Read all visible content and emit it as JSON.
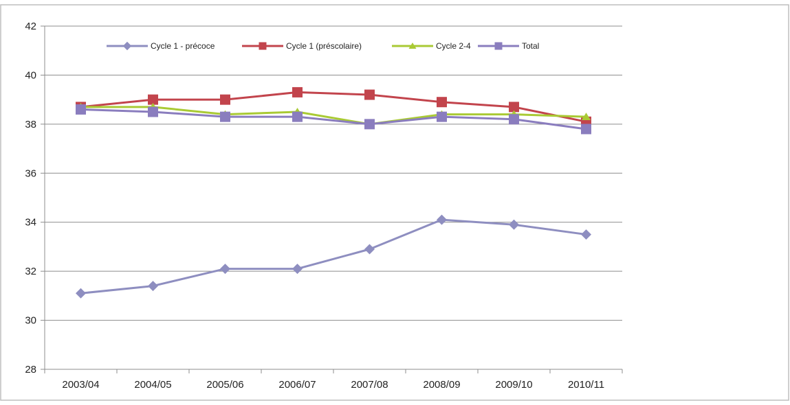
{
  "chart_data": {
    "type": "line",
    "title": "",
    "xlabel": "",
    "ylabel": "",
    "categories": [
      "2003/04",
      "2004/05",
      "2005/06",
      "2006/07",
      "2007/08",
      "2008/09",
      "2009/10",
      "2010/11"
    ],
    "ylim": [
      28,
      42
    ],
    "yticks": [
      28,
      30,
      32,
      34,
      36,
      38,
      40,
      42
    ],
    "grid": "horizontal",
    "legend_position": "top",
    "series": [
      {
        "name": "Cycle 1 - précoce",
        "color": "#8E8EC0",
        "marker": "diamond",
        "values": [
          31.1,
          31.4,
          32.1,
          32.1,
          32.9,
          34.1,
          33.9,
          33.5
        ]
      },
      {
        "name": "Cycle 1 (préscolaire)",
        "color": "#C2444C",
        "marker": "square",
        "values": [
          38.7,
          39.0,
          39.0,
          39.3,
          39.2,
          38.9,
          38.7,
          38.1
        ]
      },
      {
        "name": "Cycle 2-4",
        "color": "#A9CA34",
        "marker": "triangle",
        "values": [
          38.7,
          38.7,
          38.4,
          38.5,
          38.0,
          38.4,
          38.4,
          38.3
        ]
      },
      {
        "name": "Total",
        "color": "#8A7DBE",
        "marker": "square",
        "values": [
          38.6,
          38.5,
          38.3,
          38.3,
          38.0,
          38.3,
          38.2,
          37.8
        ]
      }
    ]
  }
}
